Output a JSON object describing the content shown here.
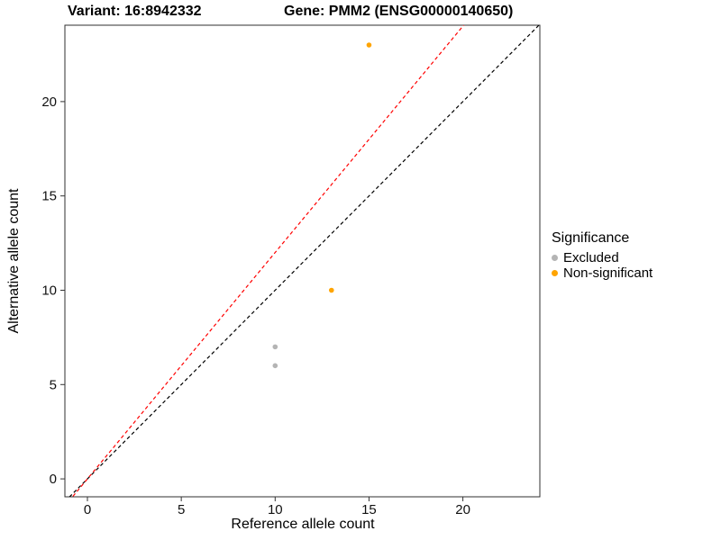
{
  "header": {
    "variant_title": "Variant: 16:8942332",
    "gene_title": "Gene: PMM2 (ENSG00000140650)"
  },
  "chart_data": {
    "type": "scatter",
    "xlabel": "Reference allele count",
    "ylabel": "Alternative allele count",
    "xlim": [
      -1.2,
      24.1
    ],
    "ylim": [
      -0.95,
      24.05
    ],
    "xticks": [
      0,
      5,
      10,
      15,
      20
    ],
    "yticks": [
      0,
      5,
      10,
      15,
      20
    ],
    "grid": false,
    "series": [
      {
        "name": "Excluded",
        "color": "#B4B4B4",
        "points": [
          [
            10,
            7
          ],
          [
            10,
            6
          ]
        ]
      },
      {
        "name": "Non-significant",
        "color": "#FFA400",
        "points": [
          [
            13,
            10
          ],
          [
            15,
            23
          ]
        ]
      }
    ],
    "lines": [
      {
        "name": "identity-line",
        "color": "#000000",
        "style": "dashed",
        "slope": 1.0,
        "intercept": 0
      },
      {
        "name": "allelic-ratio-line",
        "color": "#FF0000",
        "style": "dashed",
        "slope": 1.2,
        "intercept": 0
      }
    ],
    "legend": {
      "title": "Significance",
      "position": "right",
      "items": [
        {
          "label": "Excluded",
          "color": "#B4B4B4"
        },
        {
          "label": "Non-significant",
          "color": "#FFA400"
        }
      ]
    }
  }
}
